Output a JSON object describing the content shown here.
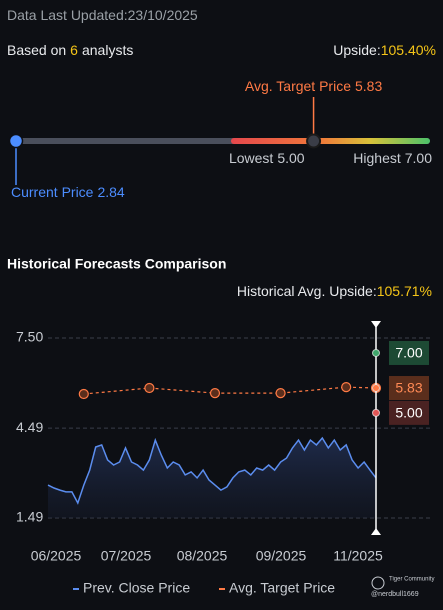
{
  "header": {
    "updated_label": "Data Last Updated:",
    "updated_date": "23/10/2025",
    "analysts_prefix": "Based on",
    "analysts_count": "6",
    "analysts_suffix": "analysts",
    "upside_label": "Upside:",
    "upside_value": "105.40%"
  },
  "price_range": {
    "avg_target": {
      "name": "Avg. Target Price",
      "value": 5.83,
      "value_label": "5.83",
      "color": "#ff7a45"
    },
    "lowest": {
      "name": "Lowest",
      "value": 5,
      "value_label": "5.00"
    },
    "highest": {
      "name": "Highest",
      "value": 7,
      "value_label": "7.00"
    },
    "current": {
      "name": "Current Price",
      "value": 2.84,
      "color": "#4c8dff"
    }
  },
  "history": {
    "title": "Historical Forecasts Comparison",
    "upside_label": "Historical Avg. Upside:",
    "upside_value": "105.71%",
    "chart_data": {
      "type": "line",
      "xlim": [
        0,
        55
      ],
      "x_labels": [
        "06/2025",
        "07/2025",
        "08/2025",
        "09/2025",
        "11/2025"
      ],
      "ylim": [
        1.49,
        7.5
      ],
      "yticks": [
        {
          "value": 7.5,
          "label": "7.50"
        },
        4.49,
        1.49
      ],
      "grid": true,
      "series": [
        {
          "name": "Prev. Close Price",
          "color": "#5b8def",
          "values": [
            2.59,
            2.49,
            2.42,
            2.36,
            2.36,
            1.99,
            2.59,
            3.09,
            3.86,
            3.93,
            3.43,
            3.26,
            3.36,
            3.83,
            3.36,
            3.26,
            3.09,
            3.43,
            4.09,
            3.59,
            3.16,
            3.36,
            3.26,
            2.93,
            3.03,
            2.83,
            3.09,
            2.76,
            2.59,
            2.42,
            2.53,
            2.83,
            3.03,
            3.09,
            2.93,
            3.16,
            3.09,
            3.26,
            3.09,
            3.36,
            3.49,
            3.83,
            4.09,
            3.76,
            4.09,
            3.93,
            4.16,
            3.83,
            4.09,
            3.76,
            3.93,
            3.43,
            3.16,
            3.36,
            3.09,
            2.83
          ]
        },
        {
          "name": "Avg. Target Price",
          "color": "#ff7a45",
          "x": [
            6,
            17,
            28,
            39,
            50,
            55
          ],
          "values": [
            5.63,
            5.83,
            5.66,
            5.66,
            5.86,
            5.83
          ]
        }
      ],
      "markers": [
        {
          "value": 7,
          "label": "7.00",
          "color": "#3fa66b"
        },
        {
          "value": 5.83,
          "label": "5.83",
          "color": "#ff7a45"
        },
        {
          "value": 5,
          "label": "5.00",
          "color": "#e05555"
        }
      ]
    }
  },
  "watermark": {
    "brand": "Tiger Community",
    "user": "@nerdbull1669"
  }
}
